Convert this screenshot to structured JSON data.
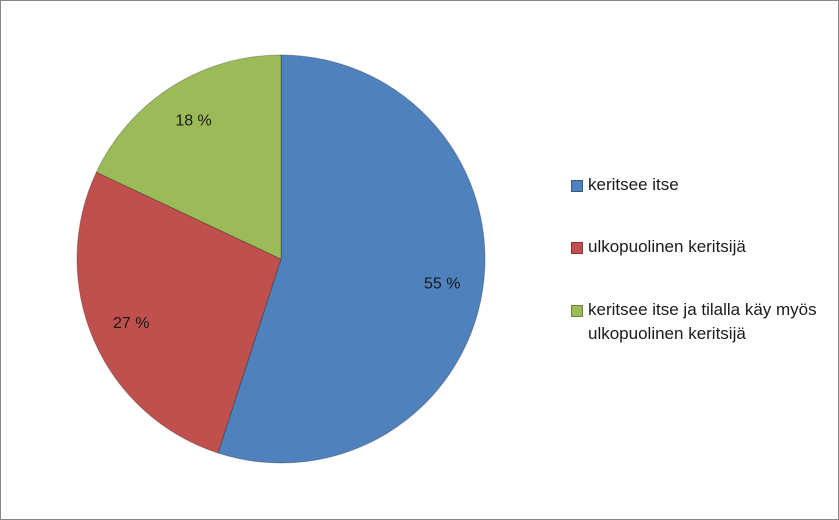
{
  "chart_data": {
    "type": "pie",
    "categories": [
      "keritsee itse",
      "ulkopuolinen keritsijä",
      "keritsee itse ja tilalla käy myös ulkopuolinen keritsijä"
    ],
    "values": [
      55,
      27,
      18
    ],
    "value_labels": [
      "55 %",
      "27 %",
      "18 %"
    ],
    "colors": [
      "#4f81bd",
      "#c0504d",
      "#9bbb59"
    ],
    "legend": "right"
  }
}
